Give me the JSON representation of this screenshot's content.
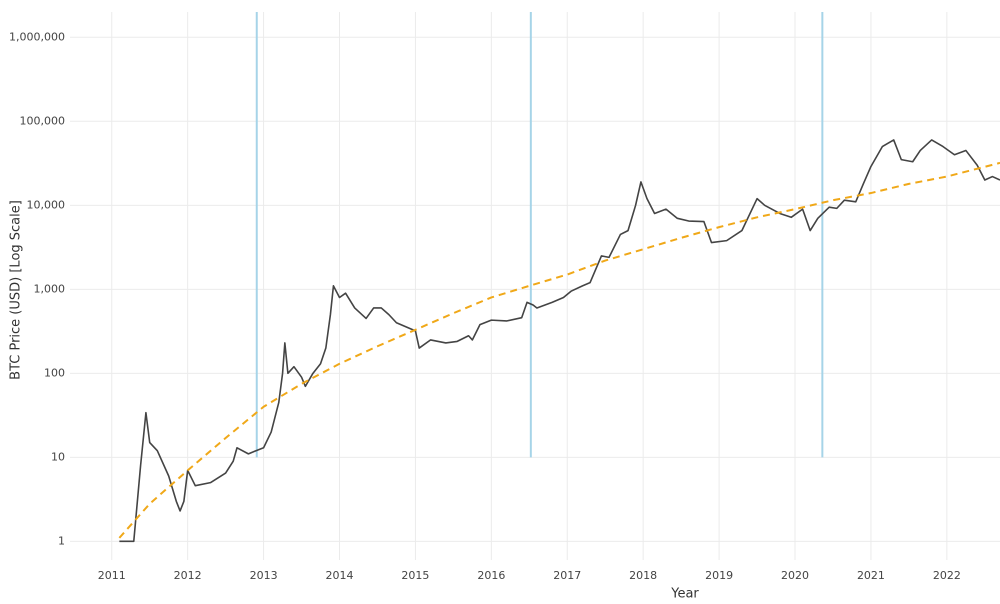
{
  "chart_data": {
    "type": "line",
    "x_label": "Year",
    "y_label": "BTC Price (USD) [Log Scale]",
    "log_y": true,
    "grid": true,
    "xlim": [
      2010.45,
      2022.7
    ],
    "ylim": [
      0.6,
      2000000
    ],
    "xticks": [
      2011,
      2012,
      2013,
      2014,
      2015,
      2016,
      2017,
      2018,
      2019,
      2020,
      2021,
      2022
    ],
    "yticks": [
      1,
      10,
      100,
      {
        "value": 1000,
        "label": "1,000"
      },
      {
        "value": 10000,
        "label": "10,000"
      },
      {
        "value": 100000,
        "label": "100,000"
      },
      {
        "value": 1000000,
        "label": "1,000,000"
      }
    ],
    "vertical_lines": {
      "x": [
        2012.91,
        2016.52,
        2020.36
      ],
      "from": 10,
      "color": "#a6d4e8"
    },
    "series": [
      {
        "color": "#444444",
        "dash": false,
        "x": [
          2011.1,
          2011.29,
          2011.38,
          2011.45,
          2011.5,
          2011.6,
          2011.75,
          2011.85,
          2011.9,
          2011.95,
          2012.0,
          2012.1,
          2012.3,
          2012.5,
          2012.6,
          2012.65,
          2012.8,
          2012.9,
          2013.0,
          2013.1,
          2013.2,
          2013.25,
          2013.28,
          2013.32,
          2013.4,
          2013.5,
          2013.55,
          2013.65,
          2013.75,
          2013.82,
          2013.88,
          2013.92,
          2014.0,
          2014.08,
          2014.2,
          2014.35,
          2014.45,
          2014.55,
          2014.65,
          2014.75,
          2014.9,
          2015.0,
          2015.05,
          2015.2,
          2015.4,
          2015.55,
          2015.7,
          2015.75,
          2015.85,
          2016.0,
          2016.2,
          2016.4,
          2016.47,
          2016.55,
          2016.6,
          2016.8,
          2016.95,
          2017.05,
          2017.2,
          2017.3,
          2017.45,
          2017.55,
          2017.7,
          2017.8,
          2017.9,
          2017.97,
          2018.05,
          2018.15,
          2018.3,
          2018.45,
          2018.6,
          2018.8,
          2018.9,
          2019.1,
          2019.3,
          2019.5,
          2019.6,
          2019.8,
          2019.95,
          2020.1,
          2020.2,
          2020.3,
          2020.45,
          2020.55,
          2020.65,
          2020.8,
          2020.9,
          2021.0,
          2021.15,
          2021.3,
          2021.4,
          2021.55,
          2021.65,
          2021.8,
          2021.95,
          2022.1,
          2022.25,
          2022.4,
          2022.5,
          2022.6,
          2022.7
        ],
        "values": [
          1,
          1,
          8,
          34,
          15,
          12,
          6,
          3,
          2.3,
          3,
          7,
          4.6,
          5,
          6.5,
          9,
          13,
          11,
          12,
          13,
          20,
          45,
          100,
          230,
          100,
          120,
          90,
          70,
          100,
          130,
          200,
          500,
          1100,
          800,
          900,
          600,
          450,
          600,
          600,
          500,
          400,
          350,
          320,
          200,
          250,
          230,
          240,
          280,
          250,
          380,
          430,
          420,
          460,
          700,
          650,
          600,
          700,
          800,
          950,
          1100,
          1200,
          2500,
          2400,
          4500,
          5000,
          10000,
          19000,
          12000,
          8000,
          9000,
          7000,
          6500,
          6400,
          3600,
          3800,
          5000,
          12000,
          10000,
          8000,
          7200,
          9000,
          5000,
          7000,
          9500,
          9200,
          11500,
          11000,
          18000,
          29000,
          50000,
          60000,
          35000,
          33000,
          45000,
          60000,
          50000,
          40000,
          45000,
          30000,
          20000,
          22000,
          20000
        ]
      },
      {
        "color": "#f0a818",
        "dash": true,
        "x": [
          2011.1,
          2011.5,
          2012,
          2012.5,
          2013,
          2013.5,
          2014,
          2014.5,
          2015,
          2015.5,
          2016,
          2016.5,
          2017,
          2017.5,
          2018,
          2018.5,
          2019,
          2019.5,
          2020,
          2020.5,
          2021,
          2021.5,
          2022,
          2022.7
        ],
        "values": [
          1.1,
          2.8,
          7,
          17,
          40,
          75,
          130,
          210,
          330,
          520,
          800,
          1100,
          1500,
          2200,
          3000,
          4100,
          5500,
          7200,
          9000,
          11500,
          14000,
          18000,
          22000,
          32000
        ]
      }
    ]
  }
}
